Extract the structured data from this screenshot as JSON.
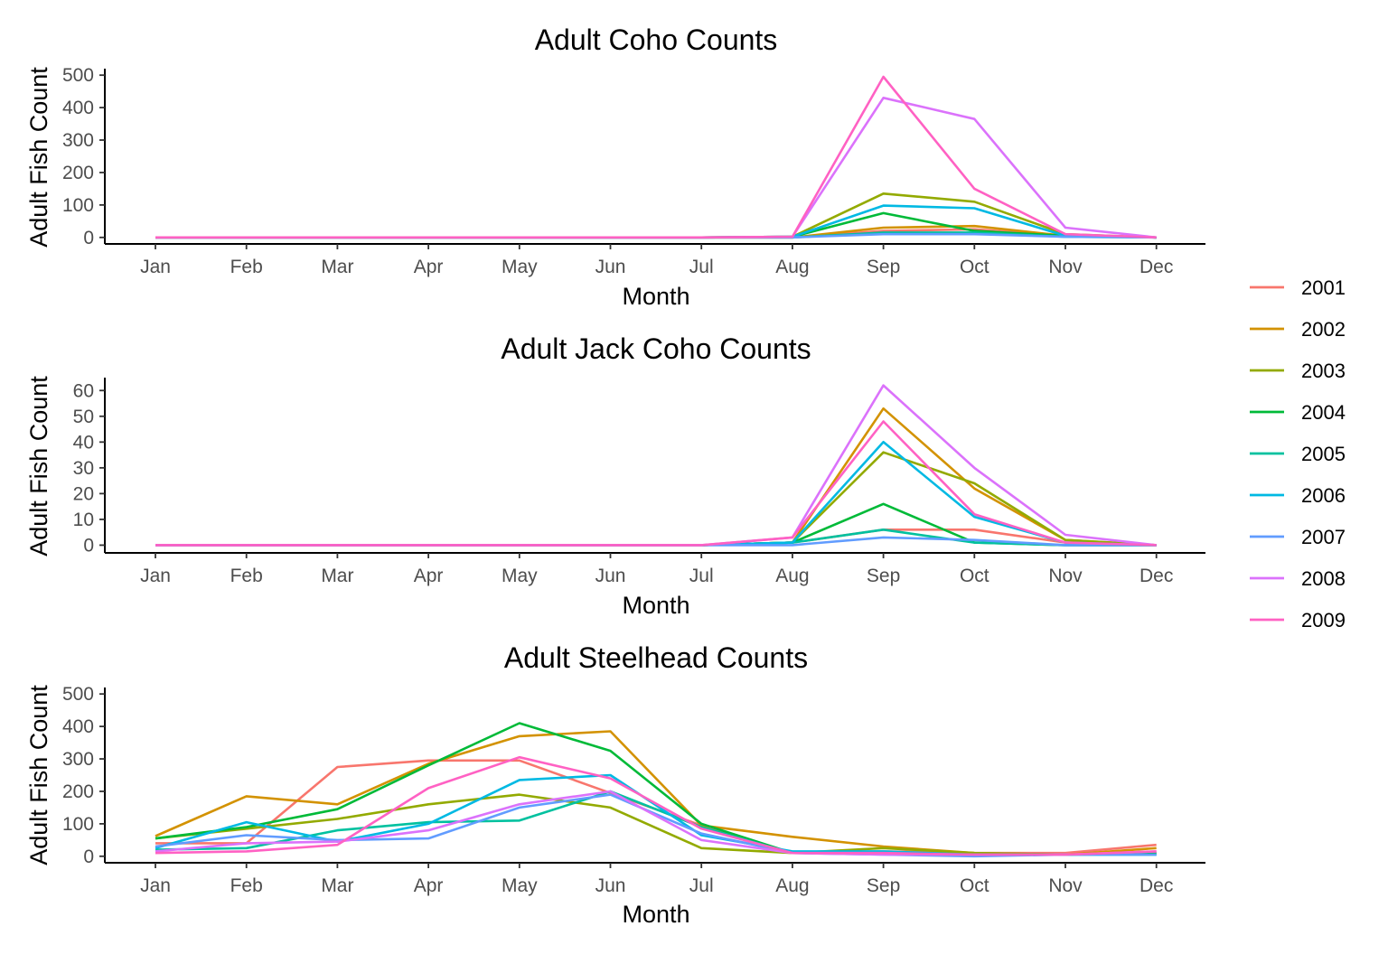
{
  "legend": {
    "entries": [
      {
        "label": "2001",
        "color": "#F8766D"
      },
      {
        "label": "2002",
        "color": "#D39200"
      },
      {
        "label": "2003",
        "color": "#93AA00"
      },
      {
        "label": "2004",
        "color": "#00BA38"
      },
      {
        "label": "2005",
        "color": "#00C19F"
      },
      {
        "label": "2006",
        "color": "#00B9E3"
      },
      {
        "label": "2007",
        "color": "#619CFF"
      },
      {
        "label": "2008",
        "color": "#DB72FB"
      },
      {
        "label": "2009",
        "color": "#FF61C3"
      }
    ]
  },
  "chart_data": [
    {
      "type": "line",
      "title": "Adult Coho Counts",
      "xlabel": "Month",
      "ylabel": "Adult Fish Count",
      "categories": [
        "Jan",
        "Feb",
        "Mar",
        "Apr",
        "May",
        "Jun",
        "Jul",
        "Aug",
        "Sep",
        "Oct",
        "Nov",
        "Dec"
      ],
      "ylim": [
        -20,
        520
      ],
      "yticks": [
        0,
        100,
        200,
        300,
        400,
        500
      ],
      "grid": false,
      "legend_position": "right",
      "series": [
        {
          "name": "2001",
          "color": "#F8766D",
          "values": [
            0,
            0,
            0,
            0,
            0,
            0,
            0,
            0,
            20,
            25,
            5,
            0
          ]
        },
        {
          "name": "2002",
          "color": "#D39200",
          "values": [
            0,
            0,
            0,
            0,
            0,
            0,
            0,
            0,
            30,
            35,
            5,
            0
          ]
        },
        {
          "name": "2003",
          "color": "#93AA00",
          "values": [
            0,
            0,
            0,
            0,
            0,
            0,
            0,
            2,
            135,
            110,
            10,
            0
          ]
        },
        {
          "name": "2004",
          "color": "#00BA38",
          "values": [
            0,
            0,
            0,
            0,
            0,
            0,
            0,
            2,
            75,
            20,
            5,
            0
          ]
        },
        {
          "name": "2005",
          "color": "#00C19F",
          "values": [
            0,
            0,
            0,
            0,
            0,
            0,
            0,
            0,
            15,
            15,
            2,
            0
          ]
        },
        {
          "name": "2006",
          "color": "#00B9E3",
          "values": [
            0,
            0,
            0,
            0,
            0,
            0,
            0,
            2,
            98,
            90,
            5,
            0
          ]
        },
        {
          "name": "2007",
          "color": "#619CFF",
          "values": [
            0,
            0,
            0,
            0,
            0,
            0,
            0,
            0,
            10,
            10,
            2,
            0
          ]
        },
        {
          "name": "2008",
          "color": "#DB72FB",
          "values": [
            0,
            0,
            0,
            0,
            0,
            0,
            0,
            2,
            430,
            365,
            30,
            0
          ]
        },
        {
          "name": "2009",
          "color": "#FF61C3",
          "values": [
            0,
            0,
            0,
            0,
            0,
            0,
            0,
            2,
            495,
            150,
            10,
            0
          ]
        }
      ]
    },
    {
      "type": "line",
      "title": "Adult Jack Coho Counts",
      "xlabel": "Month",
      "ylabel": "Adult Fish Count",
      "categories": [
        "Jan",
        "Feb",
        "Mar",
        "Apr",
        "May",
        "Jun",
        "Jul",
        "Aug",
        "Sep",
        "Oct",
        "Nov",
        "Dec"
      ],
      "ylim": [
        -3,
        65
      ],
      "yticks": [
        0,
        10,
        20,
        30,
        40,
        50,
        60
      ],
      "grid": false,
      "legend_position": "right",
      "series": [
        {
          "name": "2001",
          "color": "#F8766D",
          "values": [
            0,
            0,
            0,
            0,
            0,
            0,
            0,
            1,
            6,
            6,
            1,
            0
          ]
        },
        {
          "name": "2002",
          "color": "#D39200",
          "values": [
            0,
            0,
            0,
            0,
            0,
            0,
            0,
            1,
            53,
            22,
            2,
            0
          ]
        },
        {
          "name": "2003",
          "color": "#93AA00",
          "values": [
            0,
            0,
            0,
            0,
            0,
            0,
            0,
            1,
            36,
            24,
            2,
            0
          ]
        },
        {
          "name": "2004",
          "color": "#00BA38",
          "values": [
            0,
            0,
            0,
            0,
            0,
            0,
            0,
            1,
            16,
            1,
            0,
            0
          ]
        },
        {
          "name": "2005",
          "color": "#00C19F",
          "values": [
            0,
            0,
            0,
            0,
            0,
            0,
            0,
            1,
            6,
            1,
            0,
            0
          ]
        },
        {
          "name": "2006",
          "color": "#00B9E3",
          "values": [
            0,
            0,
            0,
            0,
            0,
            0,
            0,
            1,
            40,
            11,
            1,
            0
          ]
        },
        {
          "name": "2007",
          "color": "#619CFF",
          "values": [
            0,
            0,
            0,
            0,
            0,
            0,
            0,
            0,
            3,
            2,
            0,
            0
          ]
        },
        {
          "name": "2008",
          "color": "#DB72FB",
          "values": [
            0,
            0,
            0,
            0,
            0,
            0,
            0,
            3,
            62,
            30,
            4,
            0
          ]
        },
        {
          "name": "2009",
          "color": "#FF61C3",
          "values": [
            0,
            0,
            0,
            0,
            0,
            0,
            0,
            3,
            48,
            12,
            1,
            0
          ]
        }
      ]
    },
    {
      "type": "line",
      "title": "Adult Steelhead Counts",
      "xlabel": "Month",
      "ylabel": "Adult Fish Count",
      "categories": [
        "Jan",
        "Feb",
        "Mar",
        "Apr",
        "May",
        "Jun",
        "Jul",
        "Aug",
        "Sep",
        "Oct",
        "Nov",
        "Dec"
      ],
      "ylim": [
        -20,
        520
      ],
      "yticks": [
        0,
        100,
        200,
        300,
        400,
        500
      ],
      "grid": false,
      "legend_position": "right",
      "series": [
        {
          "name": "2001",
          "color": "#F8766D",
          "values": [
            40,
            40,
            275,
            295,
            295,
            195,
            95,
            10,
            15,
            10,
            10,
            35
          ]
        },
        {
          "name": "2002",
          "color": "#D39200",
          "values": [
            62,
            185,
            160,
            285,
            370,
            385,
            95,
            60,
            30,
            10,
            5,
            25
          ]
        },
        {
          "name": "2003",
          "color": "#93AA00",
          "values": [
            55,
            85,
            115,
            160,
            190,
            150,
            25,
            10,
            25,
            10,
            5,
            10
          ]
        },
        {
          "name": "2004",
          "color": "#00BA38",
          "values": [
            55,
            90,
            145,
            280,
            410,
            325,
            100,
            10,
            10,
            5,
            5,
            10
          ]
        },
        {
          "name": "2005",
          "color": "#00C19F",
          "values": [
            20,
            25,
            80,
            105,
            110,
            200,
            90,
            10,
            10,
            5,
            5,
            5
          ]
        },
        {
          "name": "2006",
          "color": "#00B9E3",
          "values": [
            25,
            105,
            45,
            100,
            235,
            250,
            65,
            15,
            15,
            5,
            5,
            5
          ]
        },
        {
          "name": "2007",
          "color": "#619CFF",
          "values": [
            30,
            65,
            50,
            55,
            150,
            190,
            70,
            10,
            5,
            0,
            5,
            5
          ]
        },
        {
          "name": "2008",
          "color": "#DB72FB",
          "values": [
            15,
            40,
            45,
            80,
            160,
            200,
            50,
            10,
            5,
            5,
            5,
            15
          ]
        },
        {
          "name": "2009",
          "color": "#FF61C3",
          "values": [
            10,
            15,
            35,
            210,
            305,
            240,
            85,
            10,
            10,
            5,
            5,
            15
          ]
        }
      ]
    }
  ]
}
